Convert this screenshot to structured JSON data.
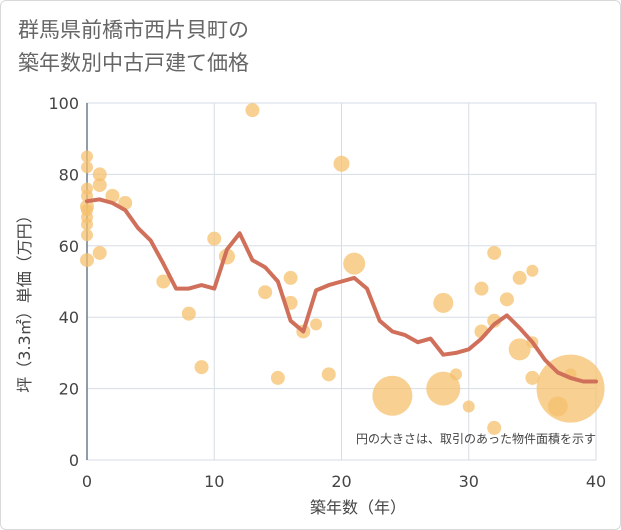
{
  "title_line1": "群馬県前橋市西片貝町の",
  "title_line2": "築年数別中古戸建て価格",
  "chart_data": {
    "type": "scatter+line",
    "xlabel": "築年数（年）",
    "ylabel": "坪（3.3㎡）単価（万円）",
    "note": "円の大きさは、取引のあった物件面積を示す",
    "xlim": [
      0,
      40
    ],
    "ylim": [
      0,
      100
    ],
    "xticks": [
      0,
      10,
      20,
      30,
      40
    ],
    "yticks": [
      0,
      20,
      40,
      60,
      80,
      100
    ],
    "scatter": [
      {
        "x": 0,
        "y": 85,
        "s": 6
      },
      {
        "x": 0,
        "y": 82,
        "s": 6
      },
      {
        "x": 0,
        "y": 76,
        "s": 6
      },
      {
        "x": 0,
        "y": 74,
        "s": 6
      },
      {
        "x": 0,
        "y": 71,
        "s": 7
      },
      {
        "x": 0,
        "y": 70,
        "s": 6
      },
      {
        "x": 0,
        "y": 68,
        "s": 6
      },
      {
        "x": 0,
        "y": 66,
        "s": 6
      },
      {
        "x": 0,
        "y": 63,
        "s": 6
      },
      {
        "x": 0,
        "y": 56,
        "s": 7
      },
      {
        "x": 1,
        "y": 80,
        "s": 7
      },
      {
        "x": 1,
        "y": 77,
        "s": 7
      },
      {
        "x": 1,
        "y": 58,
        "s": 7
      },
      {
        "x": 2,
        "y": 74,
        "s": 7
      },
      {
        "x": 3,
        "y": 72,
        "s": 7
      },
      {
        "x": 6,
        "y": 50,
        "s": 7
      },
      {
        "x": 8,
        "y": 41,
        "s": 7
      },
      {
        "x": 9,
        "y": 26,
        "s": 7
      },
      {
        "x": 10,
        "y": 62,
        "s": 7
      },
      {
        "x": 11,
        "y": 57,
        "s": 8
      },
      {
        "x": 13,
        "y": 98,
        "s": 7
      },
      {
        "x": 14,
        "y": 47,
        "s": 7
      },
      {
        "x": 15,
        "y": 23,
        "s": 7
      },
      {
        "x": 16,
        "y": 51,
        "s": 7
      },
      {
        "x": 16,
        "y": 44,
        "s": 7
      },
      {
        "x": 17,
        "y": 36,
        "s": 7
      },
      {
        "x": 18,
        "y": 38,
        "s": 6
      },
      {
        "x": 19,
        "y": 24,
        "s": 7
      },
      {
        "x": 20,
        "y": 83,
        "s": 8
      },
      {
        "x": 21,
        "y": 55,
        "s": 11
      },
      {
        "x": 24,
        "y": 18,
        "s": 20
      },
      {
        "x": 28,
        "y": 44,
        "s": 10
      },
      {
        "x": 28,
        "y": 20,
        "s": 17
      },
      {
        "x": 29,
        "y": 24,
        "s": 6
      },
      {
        "x": 30,
        "y": 15,
        "s": 6
      },
      {
        "x": 31,
        "y": 48,
        "s": 7
      },
      {
        "x": 31,
        "y": 36,
        "s": 7
      },
      {
        "x": 32,
        "y": 58,
        "s": 7
      },
      {
        "x": 32,
        "y": 39,
        "s": 7
      },
      {
        "x": 32,
        "y": 9,
        "s": 7
      },
      {
        "x": 33,
        "y": 45,
        "s": 7
      },
      {
        "x": 34,
        "y": 51,
        "s": 7
      },
      {
        "x": 34,
        "y": 31,
        "s": 11
      },
      {
        "x": 35,
        "y": 53,
        "s": 6
      },
      {
        "x": 35,
        "y": 33,
        "s": 6
      },
      {
        "x": 35,
        "y": 23,
        "s": 7
      },
      {
        "x": 37,
        "y": 15,
        "s": 10
      },
      {
        "x": 38,
        "y": 20,
        "s": 34
      },
      {
        "x": 38,
        "y": 24,
        "s": 6
      }
    ],
    "line": {
      "x": [
        0,
        1,
        2,
        3,
        4,
        5,
        6,
        7,
        8,
        9,
        10,
        11,
        12,
        13,
        14,
        15,
        16,
        17,
        18,
        19,
        20,
        21,
        22,
        23,
        24,
        25,
        26,
        27,
        28,
        29,
        30,
        31,
        32,
        33,
        34,
        35,
        36,
        37,
        38,
        39,
        40
      ],
      "y": [
        72.5,
        73,
        72,
        70,
        65,
        61.5,
        55,
        48,
        48,
        49,
        48,
        59,
        63.5,
        56,
        54,
        50,
        39,
        36,
        47.5,
        49,
        50,
        51,
        48,
        39,
        36,
        35,
        33,
        34,
        29.5,
        30,
        31,
        34,
        38,
        40.5,
        37,
        33,
        28,
        24.5,
        23,
        22,
        22
      ]
    },
    "colors": {
      "bubble": "#f5c06e",
      "line": "#d0705a",
      "grid": "#d5dde5",
      "axis": "#6b7c8c"
    }
  }
}
